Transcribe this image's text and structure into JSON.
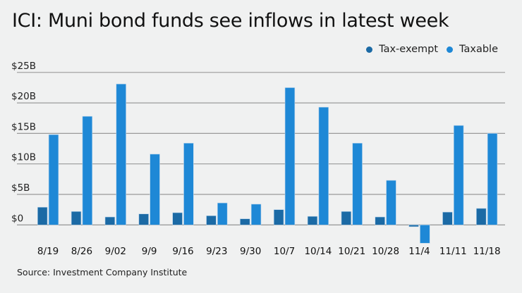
{
  "title": "ICI: Muni bond funds see inflows in latest week",
  "source": "Source: Investment Company Institute",
  "legend": [
    {
      "label": "Tax-exempt",
      "color": "#1b6aa5"
    },
    {
      "label": "Taxable",
      "color": "#1e88d6"
    }
  ],
  "chart_data": {
    "type": "bar",
    "title": "ICI: Muni bond funds see inflows in latest week",
    "xlabel": "",
    "ylabel": "",
    "ylim": [
      -3.5,
      25
    ],
    "yticks": [
      0,
      5,
      10,
      15,
      20,
      25
    ],
    "ytick_labels": [
      "$0",
      "$5B",
      "$10B",
      "$15B",
      "$20B",
      "$25B"
    ],
    "grid": true,
    "legend_position": "top-right",
    "categories": [
      "8/19",
      "8/26",
      "9/02",
      "9/9",
      "9/16",
      "9/23",
      "9/30",
      "10/7",
      "10/14",
      "10/21",
      "10/28",
      "11/4",
      "11/11",
      "11/18"
    ],
    "series": [
      {
        "name": "Tax-exempt",
        "color": "#1b6aa5",
        "values": [
          2.9,
          2.2,
          1.3,
          1.8,
          2.0,
          1.5,
          1.0,
          2.5,
          1.4,
          2.2,
          1.3,
          -0.3,
          2.1,
          2.7
        ]
      },
      {
        "name": "Taxable",
        "color": "#1e88d6",
        "values": [
          14.8,
          17.8,
          23.1,
          11.6,
          13.4,
          3.6,
          3.4,
          22.5,
          19.3,
          13.4,
          7.3,
          -3.0,
          16.3,
          15.0
        ]
      }
    ],
    "units": "billions of USD"
  }
}
